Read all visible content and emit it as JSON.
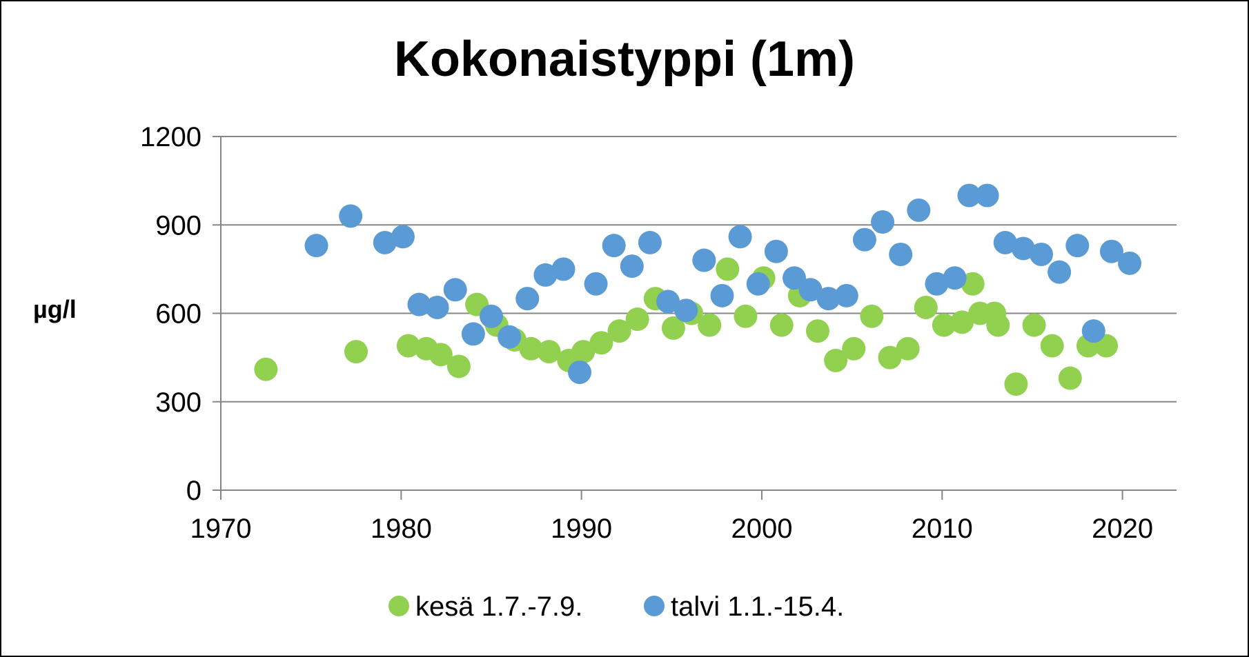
{
  "chart_data": {
    "type": "scatter",
    "title": "Kokonaistyppi (1m)",
    "xlabel": "",
    "ylabel": "µg/l",
    "xlim": [
      1970,
      2023
    ],
    "ylim": [
      0,
      1200
    ],
    "xticks": [
      1970,
      1980,
      1990,
      2000,
      2010,
      2020
    ],
    "yticks": [
      0,
      300,
      600,
      900,
      1200
    ],
    "grid": "horizontal",
    "legend_position": "bottom",
    "series": [
      {
        "name": "kesä 1.7.-7.9.",
        "color": "#92d050",
        "points": [
          [
            1972.5,
            410
          ],
          [
            1977.5,
            470
          ],
          [
            1980.4,
            490
          ],
          [
            1981.4,
            480
          ],
          [
            1982.2,
            460
          ],
          [
            1983.2,
            420
          ],
          [
            1984.2,
            630
          ],
          [
            1985.3,
            560
          ],
          [
            1986.3,
            510
          ],
          [
            1987.2,
            480
          ],
          [
            1988.2,
            470
          ],
          [
            1989.3,
            440
          ],
          [
            1990.1,
            470
          ],
          [
            1991.1,
            500
          ],
          [
            1992.1,
            540
          ],
          [
            1993.1,
            580
          ],
          [
            1994.1,
            650
          ],
          [
            1995.1,
            550
          ],
          [
            1996.1,
            600
          ],
          [
            1997.1,
            560
          ],
          [
            1998.1,
            750
          ],
          [
            1999.1,
            590
          ],
          [
            2000.1,
            720
          ],
          [
            2001.1,
            560
          ],
          [
            2002.1,
            660
          ],
          [
            2003.1,
            540
          ],
          [
            2004.1,
            440
          ],
          [
            2005.1,
            480
          ],
          [
            2006.1,
            590
          ],
          [
            2007.1,
            450
          ],
          [
            2008.1,
            480
          ],
          [
            2009.1,
            620
          ],
          [
            2010.1,
            560
          ],
          [
            2011.1,
            570
          ],
          [
            2011.7,
            700
          ],
          [
            2012.1,
            600
          ],
          [
            2012.9,
            600
          ],
          [
            2013.1,
            560
          ],
          [
            2014.1,
            360
          ],
          [
            2015.1,
            560
          ],
          [
            2016.1,
            490
          ],
          [
            2017.1,
            380
          ],
          [
            2018.1,
            490
          ],
          [
            2019.1,
            490
          ]
        ]
      },
      {
        "name": "talvi 1.1.-15.4.",
        "color": "#5b9bd5",
        "points": [
          [
            1975.3,
            830
          ],
          [
            1977.2,
            930
          ],
          [
            1979.1,
            840
          ],
          [
            1980.1,
            860
          ],
          [
            1981.0,
            630
          ],
          [
            1982.0,
            620
          ],
          [
            1983.0,
            680
          ],
          [
            1984.0,
            530
          ],
          [
            1985.0,
            590
          ],
          [
            1986.0,
            520
          ],
          [
            1987.0,
            650
          ],
          [
            1988.0,
            730
          ],
          [
            1989.0,
            750
          ],
          [
            1989.9,
            400
          ],
          [
            1990.8,
            700
          ],
          [
            1991.8,
            830
          ],
          [
            1992.8,
            760
          ],
          [
            1993.8,
            840
          ],
          [
            1994.8,
            640
          ],
          [
            1995.8,
            610
          ],
          [
            1996.8,
            780
          ],
          [
            1997.8,
            660
          ],
          [
            1998.8,
            860
          ],
          [
            1999.8,
            700
          ],
          [
            2000.8,
            810
          ],
          [
            2001.8,
            720
          ],
          [
            2002.7,
            680
          ],
          [
            2003.7,
            650
          ],
          [
            2004.7,
            660
          ],
          [
            2005.7,
            850
          ],
          [
            2006.7,
            910
          ],
          [
            2007.7,
            800
          ],
          [
            2008.7,
            950
          ],
          [
            2009.7,
            700
          ],
          [
            2010.7,
            720
          ],
          [
            2011.5,
            1000
          ],
          [
            2012.5,
            1000
          ],
          [
            2013.5,
            840
          ],
          [
            2014.5,
            820
          ],
          [
            2015.5,
            800
          ],
          [
            2016.5,
            740
          ],
          [
            2017.5,
            830
          ],
          [
            2018.4,
            540
          ],
          [
            2019.4,
            810
          ],
          [
            2020.4,
            770
          ]
        ]
      }
    ]
  }
}
